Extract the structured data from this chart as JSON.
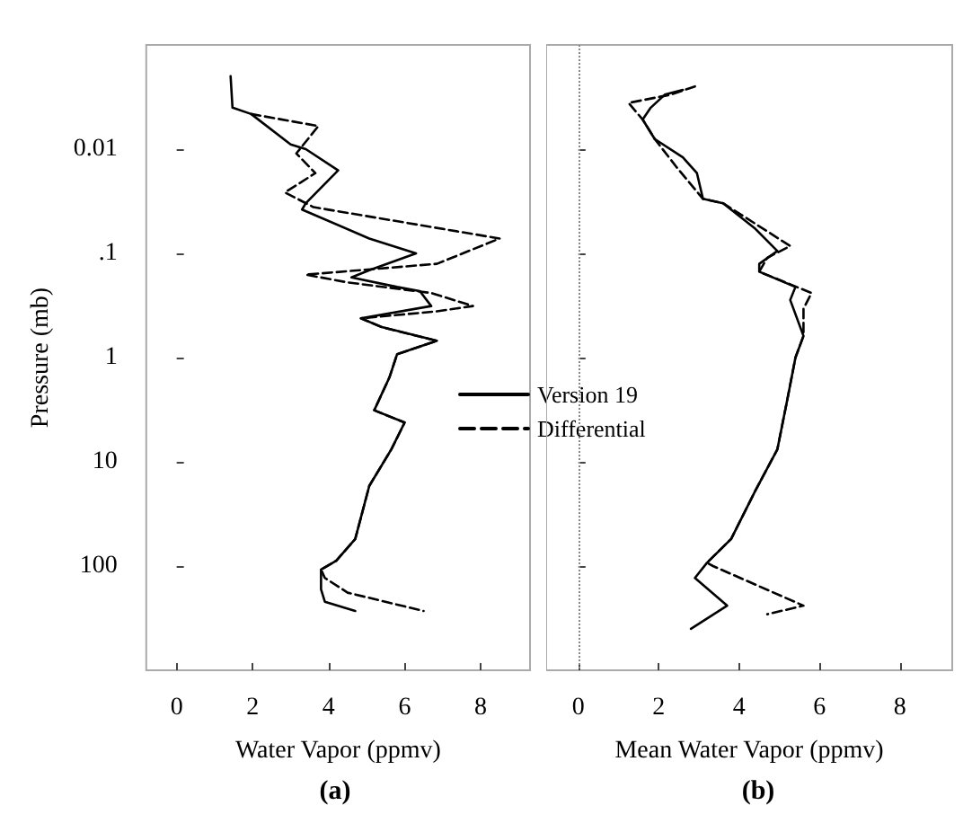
{
  "chart_data": [
    {
      "type": "line",
      "title": "(a)",
      "xlabel": "Water Vapor (ppmv)",
      "ylabel": "Pressure (mb)",
      "xlim": [
        -0.8,
        9.3
      ],
      "xticks": [
        0,
        2,
        4,
        6,
        8
      ],
      "ylim": [
        1000,
        0.001
      ],
      "log": "y",
      "yticks": [
        0.01,
        {
          "value": 0.1,
          "label": ".1"
        },
        1,
        10,
        100
      ],
      "legend": "right",
      "marker": "none",
      "grid": false,
      "series": [
        {
          "name": "Version 19",
          "color": "#000000",
          "line_style": "solid",
          "x": [
            1.42,
            1.47,
            1.96,
            3.0,
            3.4,
            4.25,
            3.4,
            3.3,
            5.07,
            6.3,
            5.07,
            4.6,
            5.8,
            6.4,
            6.7,
            4.85,
            5.4,
            6.85,
            5.8,
            5.6,
            5.2,
            6.0,
            5.65,
            5.07,
            4.7,
            4.2,
            3.8,
            3.8,
            3.9,
            4.7
          ],
          "values": [
            0.002,
            0.004,
            0.0046,
            0.009,
            0.01,
            0.016,
            0.033,
            0.038,
            0.072,
            0.1,
            0.145,
            0.17,
            0.21,
            0.23,
            0.32,
            0.42,
            0.51,
            0.69,
            0.93,
            1.55,
            3.2,
            4.2,
            7.6,
            17,
            55,
            89,
            108,
            167,
            220,
            270
          ]
        },
        {
          "name": "Differential",
          "color": "#000000",
          "line_style": "dashed",
          "x": [
            1.96,
            3.73,
            3.15,
            3.65,
            2.85,
            3.6,
            8.5,
            6.85,
            3.4,
            4.5,
            6.7,
            7.8,
            6.85,
            4.85,
            5.4,
            6.85,
            5.8,
            5.6,
            5.2,
            6.0,
            5.65,
            5.07,
            4.7,
            4.2,
            3.8,
            3.9,
            4.5,
            6.5
          ],
          "values": [
            0.0046,
            0.006,
            0.011,
            0.017,
            0.026,
            0.036,
            0.072,
            0.126,
            0.16,
            0.19,
            0.24,
            0.32,
            0.36,
            0.42,
            0.51,
            0.69,
            0.93,
            1.55,
            3.2,
            4.2,
            7.6,
            17,
            55,
            89,
            108,
            130,
            180,
            270
          ]
        }
      ]
    },
    {
      "type": "line",
      "title": "(b)",
      "xlabel": "Mean Water Vapor (ppmv)",
      "xlim": [
        -0.8,
        9.3
      ],
      "xticks": [
        0,
        2,
        4,
        6,
        8
      ],
      "ylim": [
        1000,
        0.001
      ],
      "log": "y",
      "yticks": [
        0.01,
        0.1,
        1,
        10,
        100
      ],
      "tick_labels": "x",
      "marker": "none",
      "grid": false,
      "ref_lines": [
        {
          "axis": "x",
          "value": 0,
          "line_style": "dotted",
          "color": "#888888"
        }
      ],
      "series": [
        {
          "color": "#000000",
          "line_style": "solid",
          "x": [
            2.6,
            2.15,
            1.8,
            1.6,
            1.9,
            2.6,
            2.95,
            3.1,
            3.6,
            4.4,
            4.95,
            4.5,
            4.5,
            5.4,
            5.27,
            5.6,
            5.4,
            5.2,
            5.1,
            4.95,
            4.4,
            3.8,
            3.2,
            2.9,
            3.7,
            2.8
          ],
          "values": [
            0.0027,
            0.003,
            0.004,
            0.0052,
            0.008,
            0.012,
            0.017,
            0.03,
            0.033,
            0.058,
            0.095,
            0.126,
            0.15,
            0.21,
            0.28,
            0.62,
            1.0,
            2.5,
            3.9,
            7.6,
            19,
            55,
            93,
            130,
            240,
            400
          ]
        },
        {
          "color": "#000000",
          "line_style": "dashed",
          "x": [
            2.9,
            2.3,
            1.25,
            1.6,
            1.9,
            2.45,
            3.1,
            3.6,
            5.27,
            4.7,
            4.5,
            5.8,
            5.6,
            5.6,
            5.4,
            5.2,
            5.1,
            4.95,
            4.4,
            3.8,
            3.2,
            3.35,
            5.6,
            4.7
          ],
          "values": [
            0.0025,
            0.003,
            0.0036,
            0.0052,
            0.008,
            0.015,
            0.03,
            0.033,
            0.085,
            0.11,
            0.15,
            0.24,
            0.34,
            0.62,
            1.0,
            2.5,
            3.9,
            7.6,
            19,
            55,
            93,
            100,
            240,
            290
          ]
        }
      ]
    }
  ]
}
